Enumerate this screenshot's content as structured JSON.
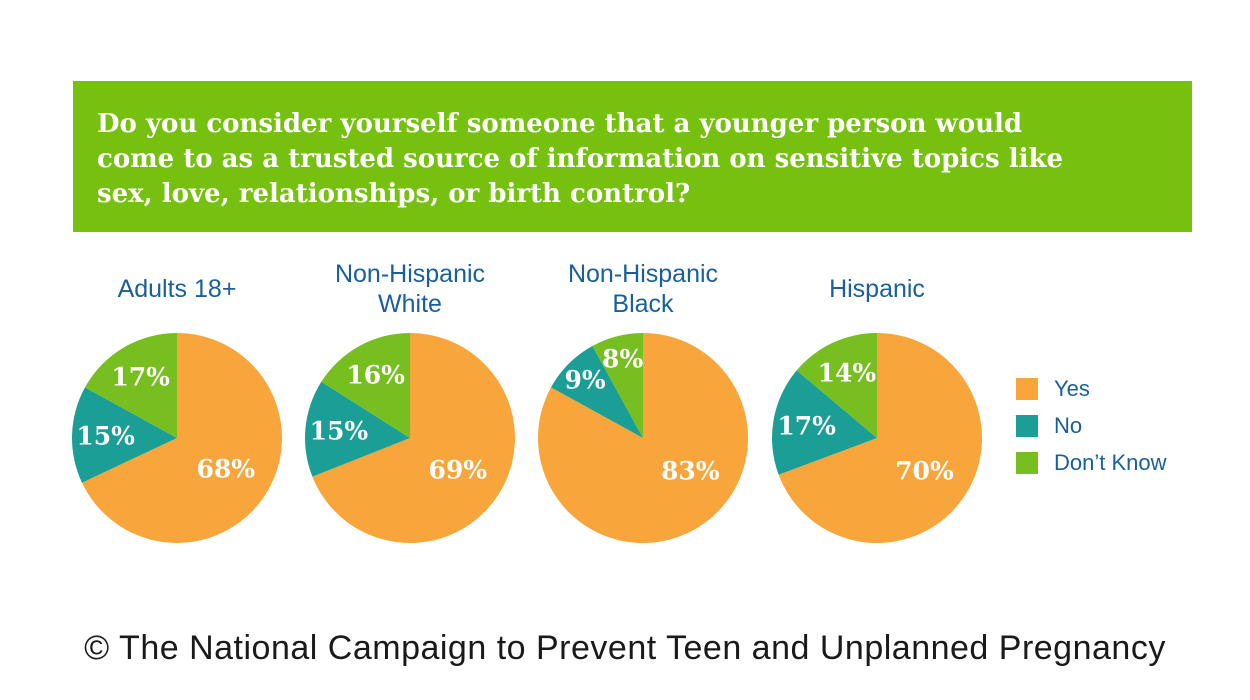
{
  "banner": {
    "bg_color": "#76C00F",
    "text_color": "#FFFFFF",
    "lines": [
      "Do you consider yourself someone that a younger person would",
      "come to as a trusted source of information on sensitive topics like",
      "sex, love, relationships, or birth control?"
    ]
  },
  "chart_data": {
    "type": "pie",
    "title": "Do you consider yourself someone that a younger person would come to as a trusted source of information on sensitive topics like sex, love, relationships, or birth control?",
    "unit": "%",
    "start_angle_deg": 0,
    "direction": "clockwise",
    "legend_position": "right",
    "labels_on_slices": true,
    "series": [
      {
        "name": "Yes",
        "color": "#F8A63C"
      },
      {
        "name": "No",
        "color": "#1A9E96"
      },
      {
        "name": "Don’t Know",
        "color": "#77BE21"
      }
    ],
    "groups": [
      {
        "title": "Adults 18+",
        "values": [
          68,
          15,
          17
        ],
        "labels": [
          "68%",
          "15%",
          "17%"
        ]
      },
      {
        "title": "Non-Hispanic White",
        "values": [
          69,
          15,
          16
        ],
        "labels": [
          "69%",
          "15%",
          "16%"
        ]
      },
      {
        "title": "Non-Hispanic Black",
        "values": [
          83,
          9,
          8
        ],
        "labels": [
          "83%",
          "9%",
          "8%"
        ]
      },
      {
        "title": "Hispanic",
        "values": [
          70,
          17,
          14
        ],
        "labels": [
          "70%",
          "17%",
          "14%"
        ]
      }
    ],
    "title_color": "#185F9B",
    "slice_label_color": "#FFFFFF"
  },
  "footer": {
    "text": "© The National Campaign to Prevent Teen and Unplanned Pregnancy"
  }
}
